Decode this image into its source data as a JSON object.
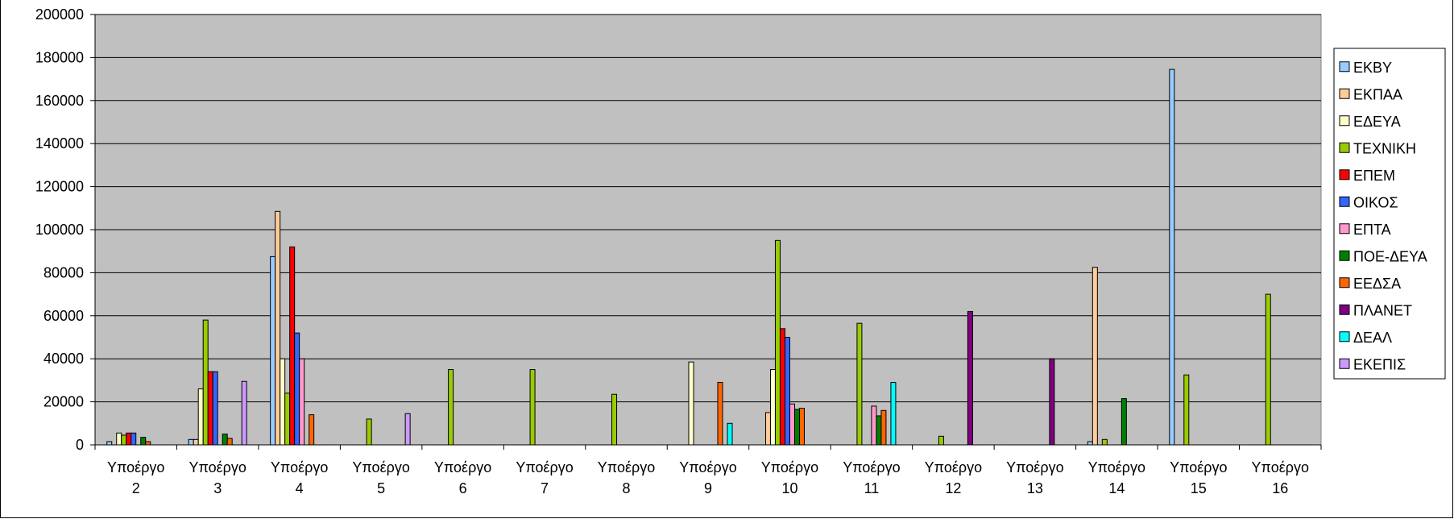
{
  "chart_data": {
    "type": "bar",
    "categories": [
      [
        "Υποέργο",
        "2"
      ],
      [
        "Υποέργο",
        "3"
      ],
      [
        "Υποέργο",
        "4"
      ],
      [
        "Υποέργο",
        "5"
      ],
      [
        "Υποέργο",
        "6"
      ],
      [
        "Υποέργο",
        "7"
      ],
      [
        "Υποέργο",
        "8"
      ],
      [
        "Υποέργο",
        "9"
      ],
      [
        "Υποέργο",
        "10"
      ],
      [
        "Υποέργο",
        "11"
      ],
      [
        "Υποέργο",
        "12"
      ],
      [
        "Υποέργο",
        "13"
      ],
      [
        "Υποέργο",
        "14"
      ],
      [
        "Υποέργο",
        "15"
      ],
      [
        "Υποέργο",
        "16"
      ]
    ],
    "ylim": [
      0,
      200000
    ],
    "yticks": [
      "0",
      "20000",
      "40000",
      "60000",
      "80000",
      "100000",
      "120000",
      "140000",
      "160000",
      "180000",
      "200000"
    ],
    "grid": true,
    "legend_position": "right",
    "plot_background": "#c0c0c0",
    "series": [
      {
        "name": "ΕΚΒΥ",
        "color": "#99ccff",
        "values": [
          1500,
          2500,
          87500,
          0,
          0,
          0,
          0,
          0,
          0,
          0,
          0,
          0,
          1500,
          174500,
          0
        ]
      },
      {
        "name": "ΕΚΠΑΑ",
        "color": "#ffcc99",
        "values": [
          0,
          2500,
          108500,
          0,
          0,
          0,
          0,
          0,
          15000,
          0,
          0,
          0,
          82500,
          0,
          0
        ]
      },
      {
        "name": "ΕΔΕΥΑ",
        "color": "#ffffcc",
        "values": [
          5500,
          26000,
          40000,
          0,
          0,
          0,
          0,
          38500,
          35000,
          0,
          0,
          0,
          0,
          0,
          0
        ]
      },
      {
        "name": "ΤΕΧΝΙΚΗ",
        "color": "#99cc00",
        "values": [
          4500,
          58000,
          24000,
          12000,
          35000,
          35000,
          23500,
          0,
          95000,
          56500,
          4000,
          0,
          2500,
          32500,
          70000
        ]
      },
      {
        "name": "ΕΠΕΜ",
        "color": "#ff0000",
        "values": [
          5500,
          34000,
          92000,
          0,
          0,
          0,
          0,
          0,
          54000,
          0,
          0,
          0,
          0,
          0,
          0
        ]
      },
      {
        "name": "ΟΙΚΟΣ",
        "color": "#3366ff",
        "values": [
          5500,
          34000,
          52000,
          0,
          0,
          0,
          0,
          0,
          50000,
          0,
          0,
          0,
          0,
          0,
          0
        ]
      },
      {
        "name": "ΕΠΤΑ",
        "color": "#ff99cc",
        "values": [
          0,
          0,
          40000,
          0,
          0,
          0,
          0,
          0,
          19000,
          18000,
          0,
          0,
          0,
          0,
          0
        ]
      },
      {
        "name": "ΠΟΕ-ΔΕΥΑ",
        "color": "#008000",
        "values": [
          3500,
          5000,
          0,
          0,
          0,
          0,
          0,
          0,
          16500,
          13500,
          0,
          0,
          21500,
          0,
          0
        ]
      },
      {
        "name": "ΕΕΔΣΑ",
        "color": "#ff6600",
        "values": [
          1500,
          3000,
          14000,
          0,
          0,
          0,
          0,
          29000,
          17000,
          16000,
          0,
          0,
          0,
          0,
          0
        ]
      },
      {
        "name": "ΠΛΑΝΕΤ",
        "color": "#800080",
        "values": [
          0,
          0,
          0,
          0,
          0,
          0,
          0,
          0,
          0,
          0,
          62000,
          40000,
          0,
          0,
          0
        ]
      },
      {
        "name": "ΔΕΑΛ",
        "color": "#00ffff",
        "values": [
          0,
          0,
          0,
          0,
          0,
          0,
          0,
          10000,
          0,
          29000,
          0,
          0,
          0,
          0,
          0
        ]
      },
      {
        "name": "ΕΚΕΠΙΣ",
        "color": "#cc99ff",
        "values": [
          0,
          29500,
          0,
          14500,
          0,
          0,
          0,
          0,
          0,
          0,
          0,
          0,
          0,
          0,
          0
        ]
      }
    ]
  }
}
